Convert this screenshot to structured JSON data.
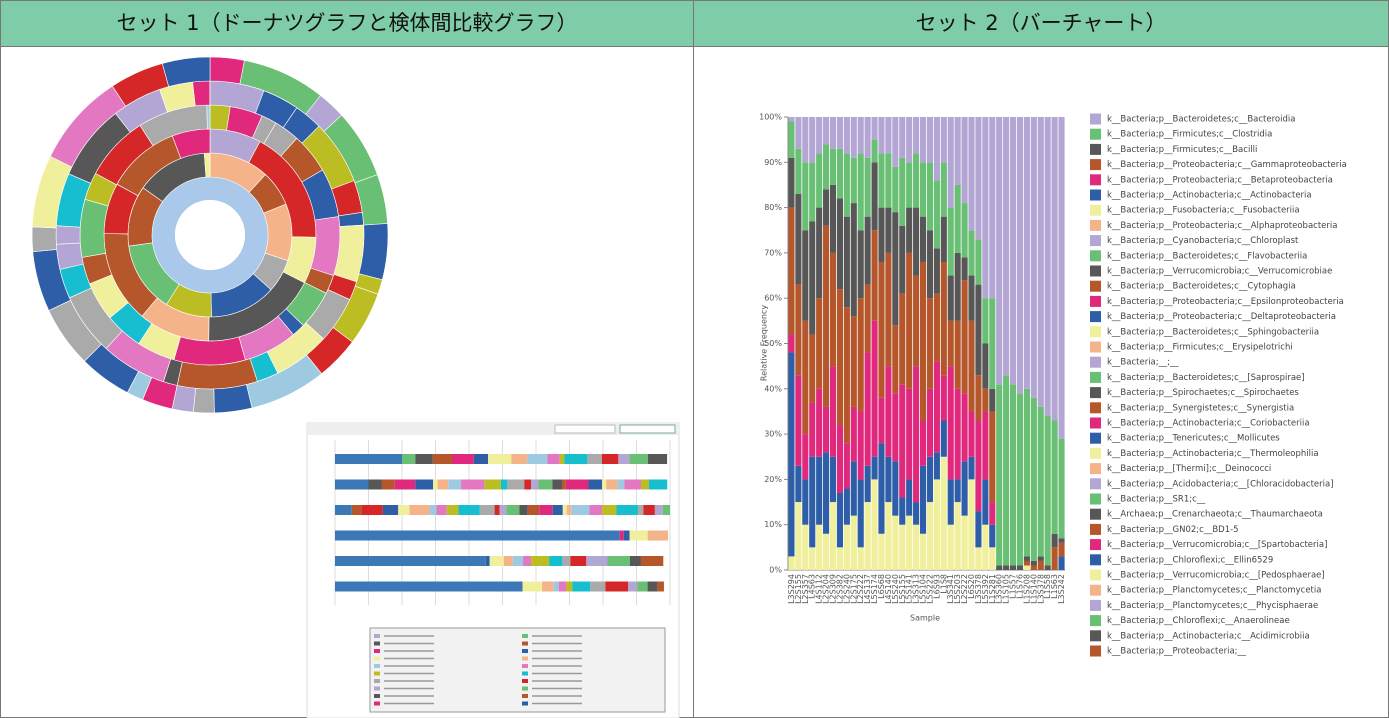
{
  "headers": [
    "セット 1（ドーナツグラフと検体間比較グラフ）",
    "セット 2（バーチャート）"
  ],
  "chart_data": {
    "type": "bar",
    "stacked": true,
    "ylabel": "Relative Frequency",
    "xlabel": "Sample",
    "ylim": [
      0,
      100
    ],
    "yticks": [
      {
        "value": 0,
        "label": "0%"
      },
      {
        "value": 10,
        "label": "10%"
      },
      {
        "value": 20,
        "label": "20%"
      },
      {
        "value": 30,
        "label": "30%"
      },
      {
        "value": 40,
        "label": "40%"
      },
      {
        "value": 50,
        "label": "50%"
      },
      {
        "value": 60,
        "label": "60%"
      },
      {
        "value": 70,
        "label": "70%"
      },
      {
        "value": 80,
        "label": "80%"
      },
      {
        "value": 90,
        "label": "90%"
      },
      {
        "value": 100,
        "label": "100%"
      }
    ],
    "categories": [
      "L3S294",
      "L2S155",
      "L2S357",
      "L4S63",
      "L4S112",
      "L2S204",
      "L2S309",
      "L2S382",
      "L2S240",
      "L2S175",
      "L2S222",
      "L4S137",
      "L5S174",
      "L6S68",
      "L4S140",
      "L5S240",
      "L5S155",
      "L5S141",
      "L3S313",
      "L5S104",
      "L5S222",
      "L6S93",
      "L1S8",
      "L3S341",
      "L5S203",
      "L2S222",
      "L6S20",
      "L3S378",
      "L5S392",
      "L1S281",
      "L3S360",
      "L1S105",
      "L1S57",
      "L1S76",
      "L1S208",
      "L1S140",
      "L3S378",
      "L1S58",
      "L1S63",
      "L3S242"
    ],
    "series": [
      {
        "name": "k__Bacteria;p__Bacteroidetes;c__Bacteroidia",
        "color": "#b3a6d4",
        "values": [
          1,
          7,
          10,
          10,
          8,
          6,
          7,
          7,
          8,
          9,
          8,
          9,
          5,
          8,
          8,
          11,
          9,
          10,
          8,
          10,
          10,
          14,
          10,
          20,
          15,
          19,
          25,
          27,
          40,
          40,
          59,
          57,
          59,
          61,
          60,
          62,
          64,
          66,
          67,
          71
        ]
      },
      {
        "name": "k__Bacteria;p__Firmicutes;c__Clostridia",
        "color": "#69bf73",
        "values": [
          8,
          10,
          15,
          13,
          12,
          10,
          8,
          11,
          14,
          10,
          17,
          13,
          5,
          12,
          12,
          10,
          15,
          10,
          12,
          12,
          15,
          15,
          12,
          15,
          15,
          12,
          10,
          10,
          10,
          20,
          40,
          42,
          40,
          38,
          37,
          36,
          33,
          33,
          25,
          22
        ]
      },
      {
        "name": "k__Bacteria;p__Firmicutes;c__Bacilli",
        "color": "#575757",
        "values": [
          11,
          20,
          20,
          25,
          20,
          8,
          15,
          20,
          20,
          25,
          15,
          15,
          15,
          12,
          10,
          25,
          15,
          10,
          15,
          10,
          15,
          10,
          10,
          10,
          15,
          5,
          10,
          20,
          10,
          5,
          1,
          1,
          1,
          1,
          1,
          1,
          1,
          1,
          3,
          1
        ]
      },
      {
        "name": "k__Bacteria;p__Proteobacteria;c__Gammaproteobacteria",
        "color": "#b5562b",
        "values": [
          28,
          20,
          25,
          15,
          20,
          40,
          25,
          30,
          30,
          20,
          25,
          15,
          20,
          30,
          25,
          15,
          20,
          30,
          20,
          35,
          20,
          15,
          25,
          10,
          15,
          25,
          20,
          10,
          5,
          20,
          0,
          0,
          0,
          0,
          1,
          1,
          2,
          0,
          5,
          3
        ]
      },
      {
        "name": "k__Bacteria;p__Proteobacteria;c__Betaproteobacteria",
        "color": "#e0287d",
        "values": [
          4,
          20,
          10,
          12,
          15,
          10,
          20,
          15,
          10,
          12,
          15,
          25,
          30,
          10,
          20,
          15,
          25,
          20,
          30,
          10,
          15,
          20,
          10,
          25,
          20,
          15,
          10,
          20,
          15,
          5,
          0,
          0,
          0,
          0,
          0,
          0,
          0,
          0,
          0,
          0
        ]
      },
      {
        "name": "k__Bacteria;p__Actinobacteria;c__Actinobacteria",
        "color": "#2e5ea8",
        "values": [
          45,
          8,
          10,
          20,
          15,
          18,
          10,
          12,
          8,
          12,
          15,
          8,
          5,
          20,
          10,
          12,
          6,
          8,
          5,
          15,
          10,
          6,
          8,
          10,
          5,
          12,
          5,
          8,
          10,
          5,
          0,
          0,
          0,
          0,
          0,
          0,
          0,
          0,
          0,
          3
        ]
      },
      {
        "name": "k__Bacteria;p__Fusobacteria;c__Fusobacteriia",
        "color": "#f0ef9c",
        "values": [
          3,
          15,
          10,
          5,
          10,
          8,
          15,
          5,
          10,
          12,
          5,
          15,
          20,
          8,
          15,
          12,
          10,
          12,
          10,
          8,
          15,
          20,
          25,
          10,
          15,
          12,
          20,
          5,
          10,
          5,
          0,
          0,
          0,
          0,
          1,
          0,
          0,
          0,
          0,
          0
        ]
      }
    ],
    "other_taxa": [
      {
        "name": "k__Bacteria;p__Proteobacteria;c__Alphaproteobacteria",
        "color": "#f5b38a"
      },
      {
        "name": "k__Bacteria;p__Cyanobacteria;c__Chloroplast",
        "color": "#b3a6d4"
      },
      {
        "name": "k__Bacteria;p__Bacteroidetes;c__Flavobacteriia",
        "color": "#69bf73"
      },
      {
        "name": "k__Bacteria;p__Verrucomicrobia;c__Verrucomicrobiae",
        "color": "#575757"
      },
      {
        "name": "k__Bacteria;p__Bacteroidetes;c__Cytophagia",
        "color": "#b5562b"
      },
      {
        "name": "k__Bacteria;p__Proteobacteria;c__Epsilonproteobacteria",
        "color": "#e0287d"
      },
      {
        "name": "k__Bacteria;p__Proteobacteria;c__Deltaproteobacteria",
        "color": "#2e5ea8"
      },
      {
        "name": "k__Bacteria;p__Bacteroidetes;c__Sphingobacteriia",
        "color": "#f0ef9c"
      },
      {
        "name": "k__Bacteria;p__Firmicutes;c__Erysipelotrichi",
        "color": "#f5b38a"
      },
      {
        "name": "k__Bacteria;__;__",
        "color": "#b3a6d4"
      },
      {
        "name": "k__Bacteria;p__Bacteroidetes;c__[Saprospirae]",
        "color": "#69bf73"
      },
      {
        "name": "k__Bacteria;p__Spirochaetes;c__Spirochaetes",
        "color": "#575757"
      },
      {
        "name": "k__Bacteria;p__Synergistetes;c__Synergistia",
        "color": "#b5562b"
      },
      {
        "name": "k__Bacteria;p__Actinobacteria;c__Coriobacteriia",
        "color": "#e0287d"
      },
      {
        "name": "k__Bacteria;p__Tenericutes;c__Mollicutes",
        "color": "#2e5ea8"
      },
      {
        "name": "k__Bacteria;p__Actinobacteria;c__Thermoleophilia",
        "color": "#f0ef9c"
      },
      {
        "name": "k__Bacteria;p__[Thermi];c__Deinococci",
        "color": "#f5b38a"
      },
      {
        "name": "k__Bacteria;p__Acidobacteria;c__[Chloracidobacteria]",
        "color": "#b3a6d4"
      },
      {
        "name": "k__Bacteria;p__SR1;c__",
        "color": "#69bf73"
      },
      {
        "name": "k__Archaea;p__Crenarchaeota;c__Thaumarchaeota",
        "color": "#575757"
      },
      {
        "name": "k__Bacteria;p__GN02;c__BD1-5",
        "color": "#b5562b"
      },
      {
        "name": "k__Bacteria;p__Verrucomicrobia;c__[Spartobacteria]",
        "color": "#e0287d"
      },
      {
        "name": "k__Bacteria;p__Chloroflexi;c__Ellin6529",
        "color": "#2e5ea8"
      },
      {
        "name": "k__Bacteria;p__Verrucomicrobia;c__[Pedosphaerae]",
        "color": "#f0ef9c"
      },
      {
        "name": "k__Bacteria;p__Planctomycetes;c__Planctomycetia",
        "color": "#f5b38a"
      },
      {
        "name": "k__Bacteria;p__Planctomycetes;c__Phycisphaerae",
        "color": "#b3a6d4"
      },
      {
        "name": "k__Bacteria;p__Chloroflexi;c__Anaerolineae",
        "color": "#69bf73"
      },
      {
        "name": "k__Bacteria;p__Actinobacteria;c__Acidimicrobiia",
        "color": "#575757"
      },
      {
        "name": "k__Bacteria;p__Proteobacteria;__",
        "color": "#b5562b"
      }
    ]
  }
}
